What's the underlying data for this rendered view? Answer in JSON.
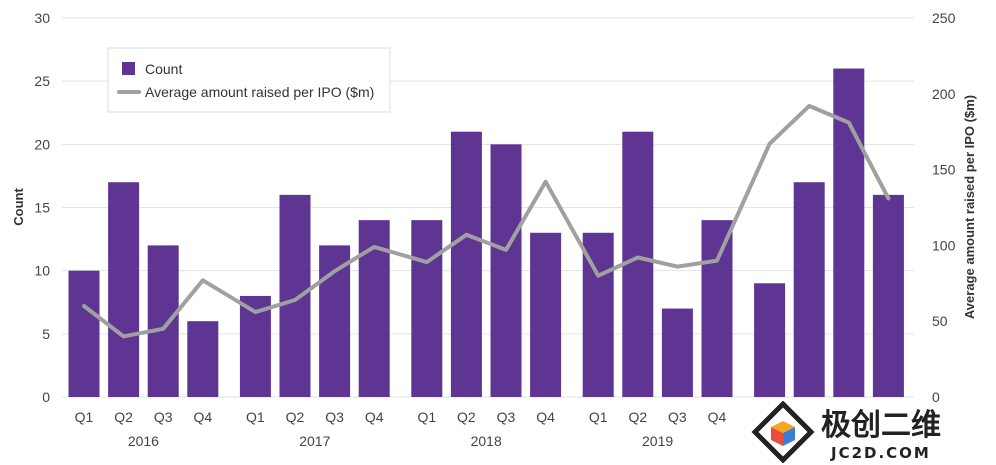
{
  "chart_data": {
    "type": "bar",
    "categories": [
      "Q1",
      "Q2",
      "Q3",
      "Q4",
      "Q1",
      "Q2",
      "Q3",
      "Q4",
      "Q1",
      "Q2",
      "Q3",
      "Q4",
      "Q1",
      "Q2",
      "Q3",
      "Q4",
      "",
      "",
      "",
      ""
    ],
    "year_labels": [
      "2016",
      "2017",
      "2018",
      "2019"
    ],
    "series": [
      {
        "name": "Count",
        "type": "bar",
        "axis": "left",
        "color": "#5e3592",
        "values": [
          10,
          17,
          12,
          6,
          8,
          16,
          12,
          14,
          14,
          21,
          20,
          13,
          13,
          21,
          7,
          14,
          9,
          17,
          26,
          16
        ]
      },
      {
        "name": "Average amount raised per IPO ($m)",
        "type": "line",
        "axis": "right",
        "color": "#a0a0a0",
        "values": [
          60,
          40,
          45,
          77,
          56,
          64,
          83,
          99,
          89,
          107,
          97,
          142,
          80,
          92,
          86,
          90,
          167,
          192,
          181,
          131
        ]
      }
    ],
    "ylabel": "Count",
    "y2label": "Average amount raised per IPO ($m)",
    "ylim": [
      0,
      30
    ],
    "y2lim": [
      0,
      250
    ],
    "yticks": [
      0,
      5,
      10,
      15,
      20,
      25,
      30
    ],
    "y2ticks": [
      0,
      50,
      100,
      150,
      200,
      250
    ],
    "grid": true,
    "legend": "top-left"
  },
  "watermark": {
    "text": "极创二维",
    "subtext": "JC2D.COM"
  }
}
